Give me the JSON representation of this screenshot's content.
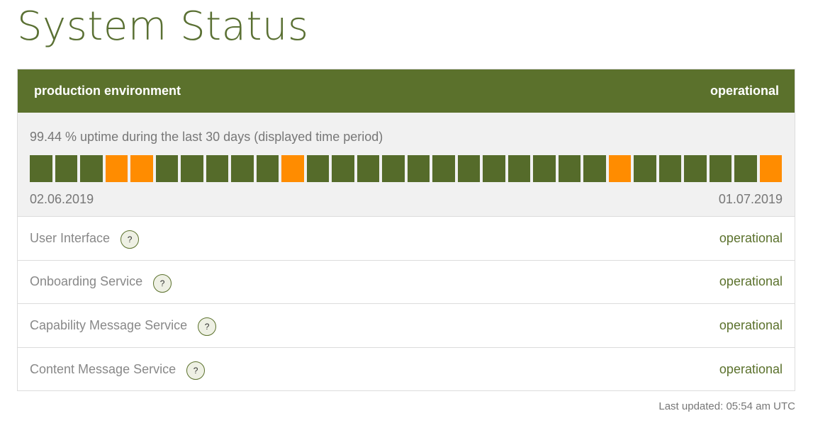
{
  "page": {
    "title": "System Status"
  },
  "environment": {
    "name": "production environment",
    "status": "operational",
    "header_color": "#5b712c"
  },
  "uptime": {
    "summary": "99.44 % uptime during the last 30 days (displayed time period)",
    "start_date": "02.06.2019",
    "end_date": "01.07.2019",
    "colors": {
      "operational": "#556b2a",
      "degraded": "#ff8c00"
    },
    "days": [
      "operational",
      "operational",
      "operational",
      "degraded",
      "degraded",
      "operational",
      "operational",
      "operational",
      "operational",
      "operational",
      "degraded",
      "operational",
      "operational",
      "operational",
      "operational",
      "operational",
      "operational",
      "operational",
      "operational",
      "operational",
      "operational",
      "operational",
      "operational",
      "degraded",
      "operational",
      "operational",
      "operational",
      "operational",
      "operational",
      "degraded"
    ]
  },
  "services": [
    {
      "name": "User Interface",
      "status": "operational",
      "help_icon": "?"
    },
    {
      "name": "Onboarding Service",
      "status": "operational",
      "help_icon": "?"
    },
    {
      "name": "Capability Message Service",
      "status": "operational",
      "help_icon": "?"
    },
    {
      "name": "Content Message Service",
      "status": "operational",
      "help_icon": "?"
    }
  ],
  "footer": {
    "last_updated": "Last updated: 05:54 am UTC"
  }
}
